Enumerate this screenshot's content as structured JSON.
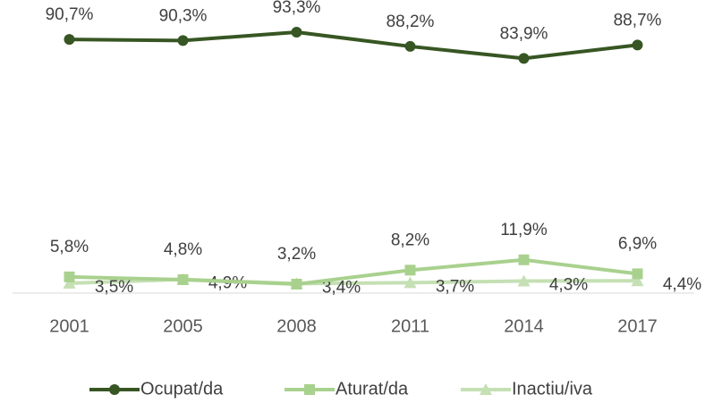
{
  "chart_data": {
    "type": "line",
    "categories": [
      "2001",
      "2005",
      "2008",
      "2011",
      "2014",
      "2017"
    ],
    "ylim": [
      0,
      100
    ],
    "series": [
      {
        "name": "Ocupat/da",
        "color": "#375623",
        "marker": "circle",
        "values": [
          90.7,
          90.3,
          93.3,
          88.2,
          83.9,
          88.7
        ],
        "value_labels": [
          "90,7%",
          "90,3%",
          "93,3%",
          "88,2%",
          "83,9%",
          "88,7%"
        ]
      },
      {
        "name": "Aturat/da",
        "color": "#a9d18e",
        "marker": "square",
        "values": [
          5.8,
          4.8,
          3.2,
          8.2,
          11.9,
          6.9
        ],
        "value_labels": [
          "5,8%",
          "4,8%",
          "3,2%",
          "8,2%",
          "11,9%",
          "6,9%"
        ]
      },
      {
        "name": "Inactiu/iva",
        "color": "#c5e0b4",
        "marker": "triangle",
        "values": [
          3.5,
          4.9,
          3.4,
          3.7,
          4.3,
          4.4
        ],
        "value_labels": [
          "3,5%",
          "4,9%",
          "3,4%",
          "3,7%",
          "4,3%",
          "4,4%"
        ]
      }
    ],
    "legend": "bottom"
  }
}
